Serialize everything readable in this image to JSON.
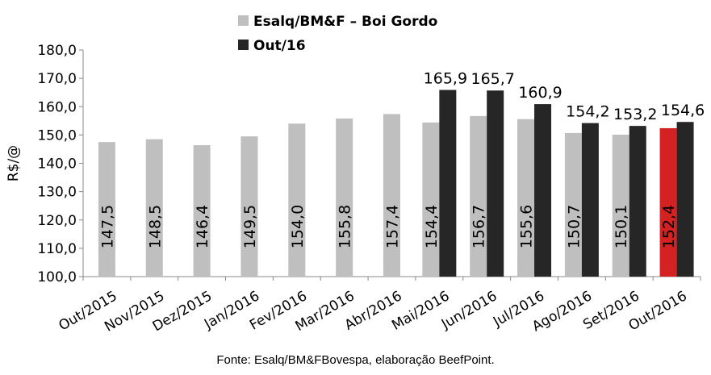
{
  "chart_data": {
    "type": "bar",
    "categories": [
      "Out/2015",
      "Nov/2015",
      "Dez/2015",
      "Jan/2016",
      "Fev/2016",
      "Mar/2016",
      "Abr/2016",
      "Mai/2016",
      "Jun/2016",
      "Jul/2016",
      "Ago/2016",
      "Set/2016",
      "Out/2016"
    ],
    "series": [
      {
        "name": "Esalq/BM&F – Boi Gordo",
        "color": "#bfbfbf",
        "values": [
          147.5,
          148.5,
          146.4,
          149.5,
          154.0,
          155.8,
          157.4,
          154.4,
          156.7,
          155.6,
          150.7,
          150.1,
          152.4
        ],
        "labels": [
          "147,5",
          "148,5",
          "146,4",
          "149,5",
          "154,0",
          "155,8",
          "157,4",
          "154,4",
          "156,7",
          "155,6",
          "150,7",
          "150,1",
          "152,4"
        ],
        "highlight": {
          "index": 12,
          "color": "#d42121"
        }
      },
      {
        "name": "Out/16",
        "color": "#262626",
        "values": [
          null,
          null,
          null,
          null,
          null,
          null,
          null,
          165.9,
          165.7,
          160.9,
          154.2,
          153.2,
          154.6
        ],
        "labels": [
          "",
          "",
          "",
          "",
          "",
          "",
          "",
          "165,9",
          "165,7",
          "160,9",
          "154,2",
          "153,2",
          "154,6"
        ]
      }
    ],
    "ylabel": "R$/@",
    "ylim": [
      100,
      180
    ],
    "yticks": [
      "100,0",
      "110,0",
      "120,0",
      "130,0",
      "140,0",
      "150,0",
      "160,0",
      "170,0",
      "180,0"
    ],
    "grid": false,
    "legend": "top-center",
    "source": "Fonte: Esalq/BM&FBovespa, elaboração BeefPoint."
  }
}
